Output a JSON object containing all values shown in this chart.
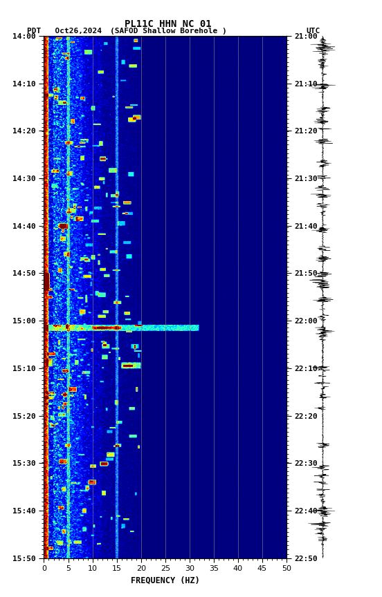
{
  "title_line1": "PL11C HHN NC 01",
  "title_line2_left": "PDT   Oct26,2024",
  "title_line2_center": "(SAFOD Shallow Borehole )",
  "title_line2_right": "UTC",
  "xlabel": "FREQUENCY (HZ)",
  "freq_min": 0,
  "freq_max": 50,
  "time_labels_left": [
    "14:00",
    "14:10",
    "14:20",
    "14:30",
    "14:40",
    "14:50",
    "15:00",
    "15:10",
    "15:20",
    "15:30",
    "15:40",
    "15:50"
  ],
  "time_labels_right": [
    "21:00",
    "21:10",
    "21:20",
    "21:30",
    "21:40",
    "21:50",
    "22:00",
    "22:10",
    "22:20",
    "22:30",
    "22:40",
    "22:50"
  ],
  "x_ticks": [
    0,
    5,
    10,
    15,
    20,
    25,
    30,
    35,
    40,
    45,
    50
  ],
  "vertical_lines_x": [
    5,
    10,
    15,
    20,
    25,
    30,
    35,
    40,
    45
  ],
  "background_color": "#ffffff",
  "waveform_color": "#000000",
  "num_time_bins": 680,
  "num_freq_bins": 250,
  "seed": 42
}
